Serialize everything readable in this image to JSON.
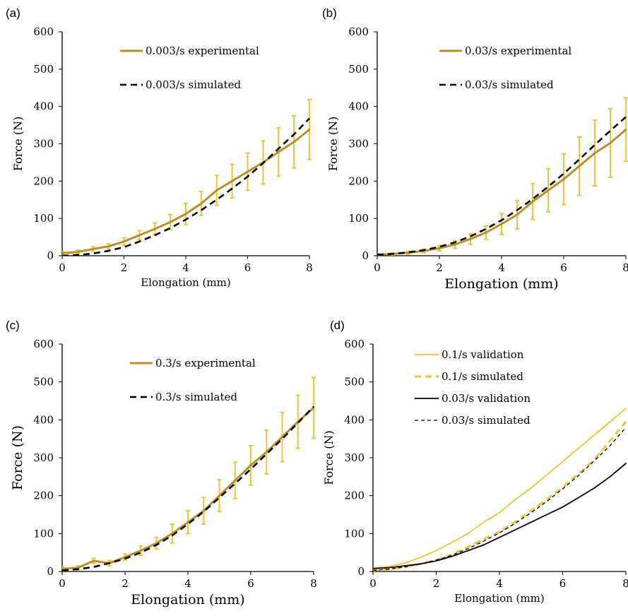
{
  "colors": {
    "experimental": "#B8902A",
    "errorbar": "#F0C23A",
    "validation_01": "#F2C236",
    "black": "#000000"
  },
  "chart_data": [
    {
      "panel": "(a)",
      "type": "line",
      "xlabel": "Elongation (mm)",
      "ylabel": "Force (N)",
      "xlim": [
        0,
        8
      ],
      "ylim": [
        0,
        600
      ],
      "xticks": [
        0,
        2,
        4,
        6,
        8
      ],
      "yticks": [
        0,
        100,
        200,
        300,
        400,
        500,
        600
      ],
      "legend": "top-left",
      "series": [
        {
          "name": "0.003/s experimental",
          "style": "experimental",
          "x": [
            0,
            0.5,
            1,
            1.5,
            2,
            2.5,
            3,
            3.5,
            4,
            4.5,
            5,
            5.5,
            6,
            6.5,
            7,
            7.5,
            8
          ],
          "y": [
            7,
            10,
            18,
            25,
            38,
            55,
            72,
            90,
            112,
            140,
            175,
            200,
            225,
            250,
            278,
            305,
            338
          ],
          "err": [
            4,
            5,
            6,
            7,
            10,
            12,
            16,
            20,
            28,
            32,
            40,
            45,
            50,
            58,
            65,
            70,
            80
          ]
        },
        {
          "name": "0.003/s simulated",
          "style": "dashed-black",
          "x": [
            0,
            0.5,
            1,
            1.5,
            2,
            2.5,
            3,
            3.5,
            4,
            4.5,
            5,
            5.5,
            6,
            6.5,
            7,
            7.5,
            8
          ],
          "y": [
            0,
            2,
            6,
            13,
            23,
            38,
            55,
            74,
            97,
            122,
            150,
            180,
            212,
            248,
            287,
            325,
            368
          ]
        }
      ]
    },
    {
      "panel": "(b)",
      "type": "line",
      "xlabel": "Elongation (mm)",
      "ylabel": "Force (N)",
      "xlim": [
        0,
        8
      ],
      "ylim": [
        0,
        600
      ],
      "xticks": [
        0,
        2,
        4,
        6,
        8
      ],
      "yticks": [
        0,
        100,
        200,
        300,
        400,
        500,
        600
      ],
      "legend": "top-right",
      "series": [
        {
          "name": "0.03/s experimental",
          "style": "experimental",
          "x": [
            0,
            0.5,
            1,
            1.5,
            2,
            2.5,
            3,
            3.5,
            4,
            4.5,
            5,
            5.5,
            6,
            6.5,
            7,
            7.5,
            8
          ],
          "y": [
            3,
            5,
            8,
            13,
            20,
            30,
            45,
            62,
            85,
            110,
            145,
            175,
            205,
            240,
            275,
            302,
            338
          ],
          "err": [
            2,
            3,
            4,
            5,
            7,
            10,
            14,
            18,
            28,
            38,
            48,
            58,
            68,
            78,
            88,
            92,
            85
          ]
        },
        {
          "name": "0.03/s simulated",
          "style": "dashed-black",
          "x": [
            0,
            0.5,
            1,
            1.5,
            2,
            2.5,
            3,
            3.5,
            4,
            4.5,
            5,
            5.5,
            6,
            6.5,
            7,
            7.5,
            8
          ],
          "y": [
            3,
            5,
            9,
            15,
            24,
            36,
            52,
            72,
            95,
            122,
            152,
            185,
            220,
            258,
            297,
            335,
            372
          ]
        }
      ]
    },
    {
      "panel": "(c)",
      "type": "line",
      "xlabel": "Elongation (mm)",
      "ylabel": "Force (N)",
      "xlim": [
        0,
        8
      ],
      "ylim": [
        0,
        600
      ],
      "xticks": [
        0,
        2,
        4,
        6,
        8
      ],
      "yticks": [
        0,
        100,
        200,
        300,
        400,
        500,
        600
      ],
      "legend": "top-right",
      "series": [
        {
          "name": "0.3/s experimental",
          "style": "experimental",
          "x": [
            0,
            0.5,
            1,
            1.5,
            2,
            2.5,
            3,
            3.5,
            4,
            4.5,
            5,
            5.5,
            6,
            6.5,
            7,
            7.5,
            8
          ],
          "y": [
            7,
            10,
            28,
            22,
            38,
            55,
            75,
            100,
            130,
            160,
            200,
            240,
            280,
            315,
            355,
            395,
            432
          ],
          "err": [
            5,
            5,
            7,
            7,
            8,
            12,
            15,
            25,
            30,
            35,
            42,
            48,
            52,
            58,
            65,
            70,
            80
          ]
        },
        {
          "name": "0.3/s simulated",
          "style": "dashed-black",
          "x": [
            0,
            0.5,
            1,
            1.5,
            2,
            2.5,
            3,
            3.5,
            4,
            4.5,
            5,
            5.5,
            6,
            6.5,
            7,
            7.5,
            8
          ],
          "y": [
            3,
            6,
            12,
            22,
            34,
            50,
            70,
            95,
            125,
            158,
            195,
            232,
            270,
            310,
            350,
            392,
            435
          ]
        }
      ]
    },
    {
      "panel": "(d)",
      "type": "line",
      "xlabel": "Elongation (mm)",
      "ylabel": "Force (N)",
      "xlim": [
        0,
        8
      ],
      "ylim": [
        0,
        600
      ],
      "xticks": [
        0,
        2,
        4,
        6,
        8
      ],
      "yticks": [
        0,
        100,
        200,
        300,
        400,
        500,
        600
      ],
      "legend": "top-left",
      "series": [
        {
          "name": "0.1/s validation",
          "style": "thin-yellow",
          "x": [
            0,
            0.5,
            1,
            1.5,
            2,
            2.5,
            3,
            3.5,
            4,
            4.5,
            5,
            5.5,
            6,
            6.5,
            7,
            7.5,
            8
          ],
          "y": [
            8,
            13,
            22,
            37,
            55,
            77,
            100,
            130,
            155,
            190,
            220,
            255,
            290,
            325,
            360,
            395,
            430
          ]
        },
        {
          "name": "0.1/s simulated",
          "style": "dashed-yellow",
          "x": [
            0,
            0.5,
            1,
            1.5,
            2,
            2.5,
            3,
            3.5,
            4,
            4.5,
            5,
            5.5,
            6,
            6.5,
            7,
            7.5,
            8
          ],
          "y": [
            3,
            6,
            12,
            20,
            30,
            45,
            65,
            85,
            105,
            130,
            160,
            190,
            222,
            258,
            295,
            345,
            395
          ]
        },
        {
          "name": "0.03/s validation",
          "style": "thin-black",
          "x": [
            0,
            0.5,
            1,
            1.5,
            2,
            2.5,
            3,
            3.5,
            4,
            4.5,
            5,
            5.5,
            6,
            6.5,
            7,
            7.5,
            8
          ],
          "y": [
            8,
            10,
            15,
            20,
            28,
            40,
            55,
            70,
            90,
            110,
            130,
            150,
            170,
            195,
            220,
            250,
            285
          ]
        },
        {
          "name": "0.03/s simulated",
          "style": "thin-dashed-black",
          "x": [
            0,
            0.5,
            1,
            1.5,
            2,
            2.5,
            3,
            3.5,
            4,
            4.5,
            5,
            5.5,
            6,
            6.5,
            7,
            7.5,
            8
          ],
          "y": [
            3,
            6,
            12,
            20,
            30,
            43,
            60,
            80,
            102,
            127,
            155,
            185,
            218,
            253,
            292,
            332,
            380
          ]
        }
      ]
    }
  ]
}
